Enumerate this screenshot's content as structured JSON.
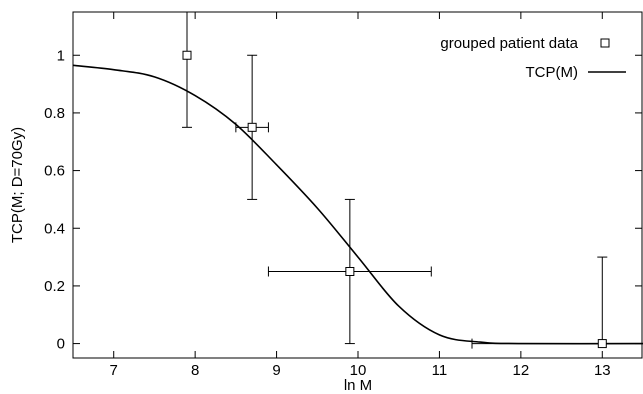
{
  "chart_data": {
    "type": "scatter",
    "title": "",
    "xlabel": "ln M",
    "ylabel": "TCP(M; D=70Gy)",
    "xlim": [
      6.5,
      13.5
    ],
    "ylim": [
      -0.05,
      1.15
    ],
    "x_ticks": [
      7,
      8,
      9,
      10,
      11,
      12,
      13
    ],
    "x_tick_labels": [
      "7",
      "8",
      "9",
      "10",
      "11",
      "12",
      "13"
    ],
    "y_ticks": [
      0,
      0.2,
      0.4,
      0.6,
      0.8,
      1
    ],
    "y_tick_labels": [
      "0",
      "0.2",
      "0.4",
      "0.6",
      "0.8",
      "1"
    ],
    "grid": false,
    "legend_position": "top-right",
    "series": [
      {
        "name": "grouped patient data",
        "kind": "points",
        "marker": "open-square",
        "points": [
          {
            "x": 7.9,
            "y": 1.0,
            "y_err_low": 0.25,
            "y_err_high": 0.15,
            "x_err": 0
          },
          {
            "x": 8.7,
            "y": 0.75,
            "y_err_low": 0.25,
            "y_err_high": 0.25,
            "x_err": 0.2
          },
          {
            "x": 9.9,
            "y": 0.25,
            "y_err_low": 0.25,
            "y_err_high": 0.25,
            "x_err": 1.0
          },
          {
            "x": 13.0,
            "y": 0.0,
            "y_err_low": 0.0,
            "y_err_high": 0.3,
            "x_err": 1.6
          }
        ]
      },
      {
        "name": "TCP(M)",
        "kind": "line",
        "curve": [
          {
            "x": 6.5,
            "y": 0.965
          },
          {
            "x": 7.0,
            "y": 0.95
          },
          {
            "x": 7.5,
            "y": 0.925
          },
          {
            "x": 8.0,
            "y": 0.86
          },
          {
            "x": 8.5,
            "y": 0.76
          },
          {
            "x": 9.0,
            "y": 0.62
          },
          {
            "x": 9.5,
            "y": 0.47
          },
          {
            "x": 10.0,
            "y": 0.3
          },
          {
            "x": 10.5,
            "y": 0.13
          },
          {
            "x": 11.0,
            "y": 0.03
          },
          {
            "x": 11.5,
            "y": 0.005
          },
          {
            "x": 12.0,
            "y": 0.0
          },
          {
            "x": 13.5,
            "y": 0.0
          }
        ]
      }
    ]
  },
  "colors": {
    "line": "#000000",
    "background": "#ffffff"
  }
}
